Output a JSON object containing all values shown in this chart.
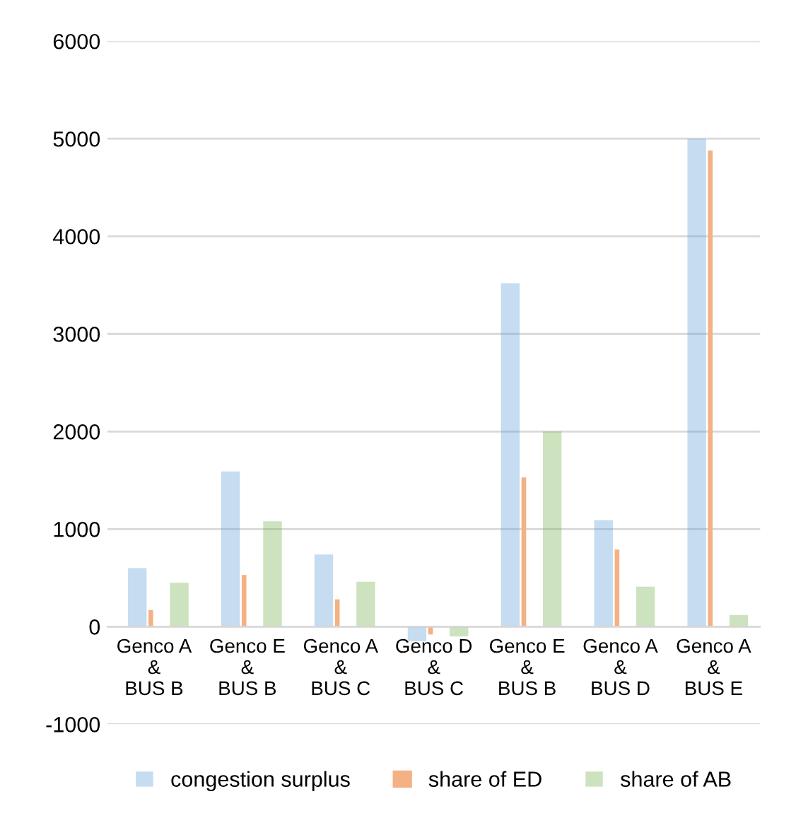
{
  "chart_data": {
    "type": "bar",
    "categories": [
      "Genco A\n&\nBUS B",
      "Genco E\n&\nBUS B",
      "Genco A\n&\nBUS C",
      "Genco D\n&\nBUS C",
      "Genco E\n&\nBUS B",
      "Genco A\n&\nBUS D",
      "Genco A\n&\nBUS E"
    ],
    "series": [
      {
        "name": "congestion surplus",
        "color": "#5b9bd5",
        "values": [
          600,
          1590,
          740,
          -150,
          3520,
          1090,
          5000
        ]
      },
      {
        "name": "share of ED",
        "color": "#f4b183",
        "values": [
          170,
          530,
          280,
          -80,
          1530,
          790,
          4880
        ]
      },
      {
        "name": "share of AB",
        "color": "#70ad47",
        "values": [
          450,
          1080,
          460,
          -100,
          2000,
          410,
          120
        ]
      }
    ],
    "ylim": [
      -1000,
      6000
    ],
    "yticks": [
      -1000,
      0,
      1000,
      2000,
      3000,
      4000,
      5000,
      6000
    ],
    "grid": "y",
    "legend": "bottom"
  }
}
